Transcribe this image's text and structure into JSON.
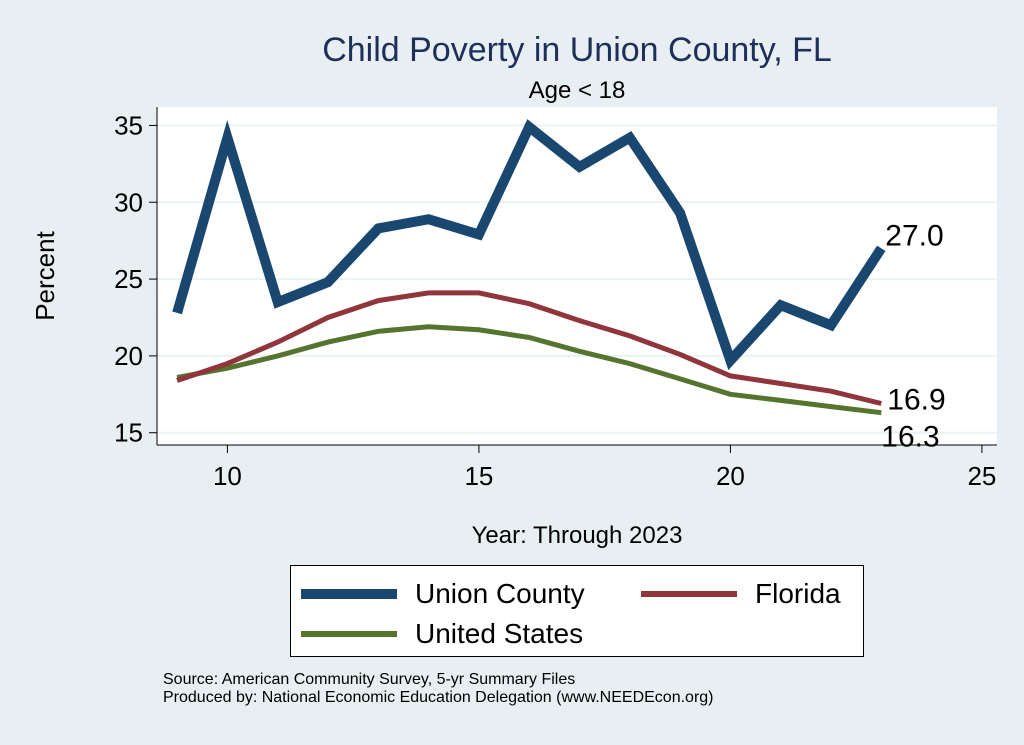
{
  "chart_data": {
    "type": "line",
    "title": "Child Poverty in Union County, FL",
    "subtitle": "Age < 18",
    "xlabel": "Year: Through 2023",
    "ylabel": "Percent",
    "xlim": [
      8.6,
      25.3
    ],
    "ylim": [
      14.2,
      36.2
    ],
    "xticks": [
      10,
      15,
      20,
      25
    ],
    "yticks": [
      15,
      20,
      25,
      30,
      35
    ],
    "grid": true,
    "legend_position": "bottom",
    "series": [
      {
        "name": "Union County",
        "color": "#1a476f",
        "stroke": 10,
        "x": [
          9,
          10,
          11,
          12,
          13,
          14,
          15,
          16,
          17,
          18,
          19,
          20,
          21,
          22,
          23
        ],
        "values": [
          22.8,
          34.2,
          23.5,
          24.8,
          28.3,
          28.9,
          27.9,
          34.9,
          32.3,
          34.2,
          29.3,
          19.7,
          23.3,
          22.0,
          27.0
        ],
        "end_label": "27.0"
      },
      {
        "name": "Florida",
        "color": "#90353b",
        "stroke": 5,
        "x": [
          9,
          10,
          11,
          12,
          13,
          14,
          15,
          16,
          17,
          18,
          19,
          20,
          21,
          22,
          23
        ],
        "values": [
          18.4,
          19.5,
          20.9,
          22.5,
          23.6,
          24.1,
          24.1,
          23.4,
          22.3,
          21.3,
          20.1,
          18.7,
          18.2,
          17.7,
          16.9
        ],
        "end_label": "16.9"
      },
      {
        "name": "United States",
        "color": "#55752f",
        "stroke": 5,
        "x": [
          9,
          10,
          11,
          12,
          13,
          14,
          15,
          16,
          17,
          18,
          19,
          20,
          21,
          22,
          23
        ],
        "values": [
          18.6,
          19.2,
          20.0,
          20.9,
          21.6,
          21.9,
          21.7,
          21.2,
          20.3,
          19.5,
          18.5,
          17.5,
          17.1,
          16.7,
          16.3
        ],
        "end_label": "16.3"
      }
    ]
  },
  "source_lines": [
    "Source: American Community Survey, 5-yr Summary Files",
    "Produced by: National Economic Education Delegation (www.NEEDEcon.org)"
  ]
}
